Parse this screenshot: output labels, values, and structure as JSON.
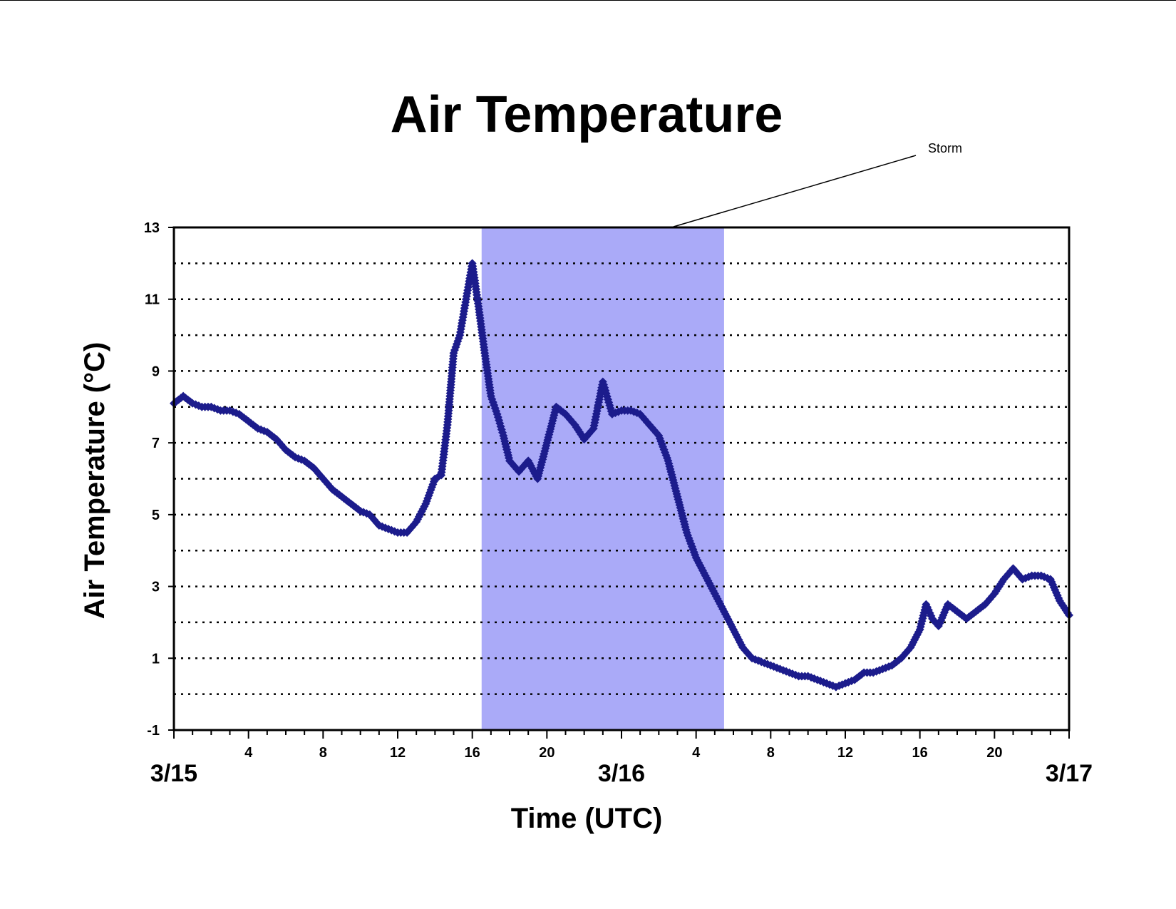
{
  "chart_data": {
    "type": "scatter",
    "title": "Air Temperature",
    "xlabel": "Time (UTC)",
    "ylabel": "Air Temperature (°C)",
    "ylim": [
      -1,
      13
    ],
    "xlim": [
      "3/15 00:00",
      "3/17 00:00"
    ],
    "y_ticks": [
      "13",
      "11",
      "9",
      "7",
      "5",
      "3",
      "1",
      "-1"
    ],
    "y_gridlines": [
      12,
      11,
      10,
      9,
      8,
      7,
      6,
      5,
      4,
      3,
      2,
      1,
      0
    ],
    "grid": "dotted horizontal",
    "x_ticks": [
      "4",
      "8",
      "12",
      "16",
      "20",
      "4",
      "8",
      "12",
      "16",
      "20"
    ],
    "date_labels": [
      "3/15",
      "3/16",
      "3/17"
    ],
    "annotation": "Storm",
    "storm_span": [
      "3/15 16:30",
      "3/16 05:30"
    ],
    "colors": {
      "series": "#1c1c8c",
      "storm_band": "#aaaaf8"
    },
    "series": [
      {
        "x": [
          "3/15 00:00",
          "3/15 00:30",
          "3/15 01:00",
          "3/15 01:30",
          "3/15 02:00",
          "3/15 02:30",
          "3/15 03:00",
          "3/15 03:30",
          "3/15 04:00",
          "3/15 04:30",
          "3/15 05:00",
          "3/15 05:30",
          "3/15 06:00",
          "3/15 06:30",
          "3/15 07:00",
          "3/15 07:30",
          "3/15 08:00",
          "3/15 08:30",
          "3/15 09:00",
          "3/15 09:30",
          "3/15 10:00",
          "3/15 10:30",
          "3/15 11:00",
          "3/15 11:30",
          "3/15 12:00",
          "3/15 12:30",
          "3/15 13:00",
          "3/15 13:30",
          "3/15 14:00",
          "3/15 14:20",
          "3/15 14:40",
          "3/15 15:00",
          "3/15 15:20",
          "3/15 15:40",
          "3/15 16:00",
          "3/15 16:20",
          "3/15 16:40",
          "3/15 17:00",
          "3/15 17:20",
          "3/15 17:40",
          "3/15 18:00",
          "3/15 18:30",
          "3/15 19:00",
          "3/15 19:30",
          "3/15 20:00",
          "3/15 20:30",
          "3/15 21:00",
          "3/15 21:30",
          "3/15 22:00",
          "3/15 22:30",
          "3/15 23:00",
          "3/15 23:30",
          "3/16 00:00",
          "3/16 00:30",
          "3/16 01:00",
          "3/16 01:30",
          "3/16 02:00",
          "3/16 02:30",
          "3/16 03:00",
          "3/16 03:30",
          "3/16 04:00",
          "3/16 04:30",
          "3/16 05:00",
          "3/16 05:30",
          "3/16 06:00",
          "3/16 06:30",
          "3/16 07:00",
          "3/16 07:30",
          "3/16 08:00",
          "3/16 08:30",
          "3/16 09:00",
          "3/16 09:30",
          "3/16 10:00",
          "3/16 10:30",
          "3/16 11:00",
          "3/16 11:30",
          "3/16 12:00",
          "3/16 12:30",
          "3/16 13:00",
          "3/16 13:30",
          "3/16 14:00",
          "3/16 14:30",
          "3/16 15:00",
          "3/16 15:30",
          "3/16 16:00",
          "3/16 16:20",
          "3/16 16:40",
          "3/16 17:00",
          "3/16 17:30",
          "3/16 18:00",
          "3/16 18:30",
          "3/16 19:00",
          "3/16 19:30",
          "3/16 20:00",
          "3/16 20:30",
          "3/16 21:00",
          "3/16 21:30",
          "3/16 22:00",
          "3/16 22:30",
          "3/16 23:00",
          "3/16 23:30",
          "3/17 00:00"
        ],
        "y": [
          8.1,
          8.3,
          8.1,
          8.0,
          8.0,
          7.9,
          7.9,
          7.8,
          7.6,
          7.4,
          7.3,
          7.1,
          6.8,
          6.6,
          6.5,
          6.3,
          6.0,
          5.7,
          5.5,
          5.3,
          5.1,
          5.0,
          4.7,
          4.6,
          4.5,
          4.5,
          4.8,
          5.3,
          6.0,
          6.1,
          7.5,
          9.5,
          10.0,
          11.0,
          12.0,
          10.8,
          9.5,
          8.3,
          7.8,
          7.2,
          6.5,
          6.2,
          6.5,
          6.0,
          7.0,
          8.0,
          7.8,
          7.5,
          7.1,
          7.4,
          8.7,
          7.8,
          7.9,
          7.9,
          7.8,
          7.5,
          7.2,
          6.5,
          5.5,
          4.5,
          3.8,
          3.3,
          2.8,
          2.3,
          1.8,
          1.3,
          1.0,
          0.9,
          0.8,
          0.7,
          0.6,
          0.5,
          0.5,
          0.4,
          0.3,
          0.2,
          0.3,
          0.4,
          0.6,
          0.6,
          0.7,
          0.8,
          1.0,
          1.3,
          1.8,
          2.5,
          2.1,
          1.9,
          2.5,
          2.3,
          2.1,
          2.3,
          2.5,
          2.8,
          3.2,
          3.5,
          3.2,
          3.3,
          3.3,
          3.2,
          2.6,
          2.2
        ]
      }
    ]
  }
}
